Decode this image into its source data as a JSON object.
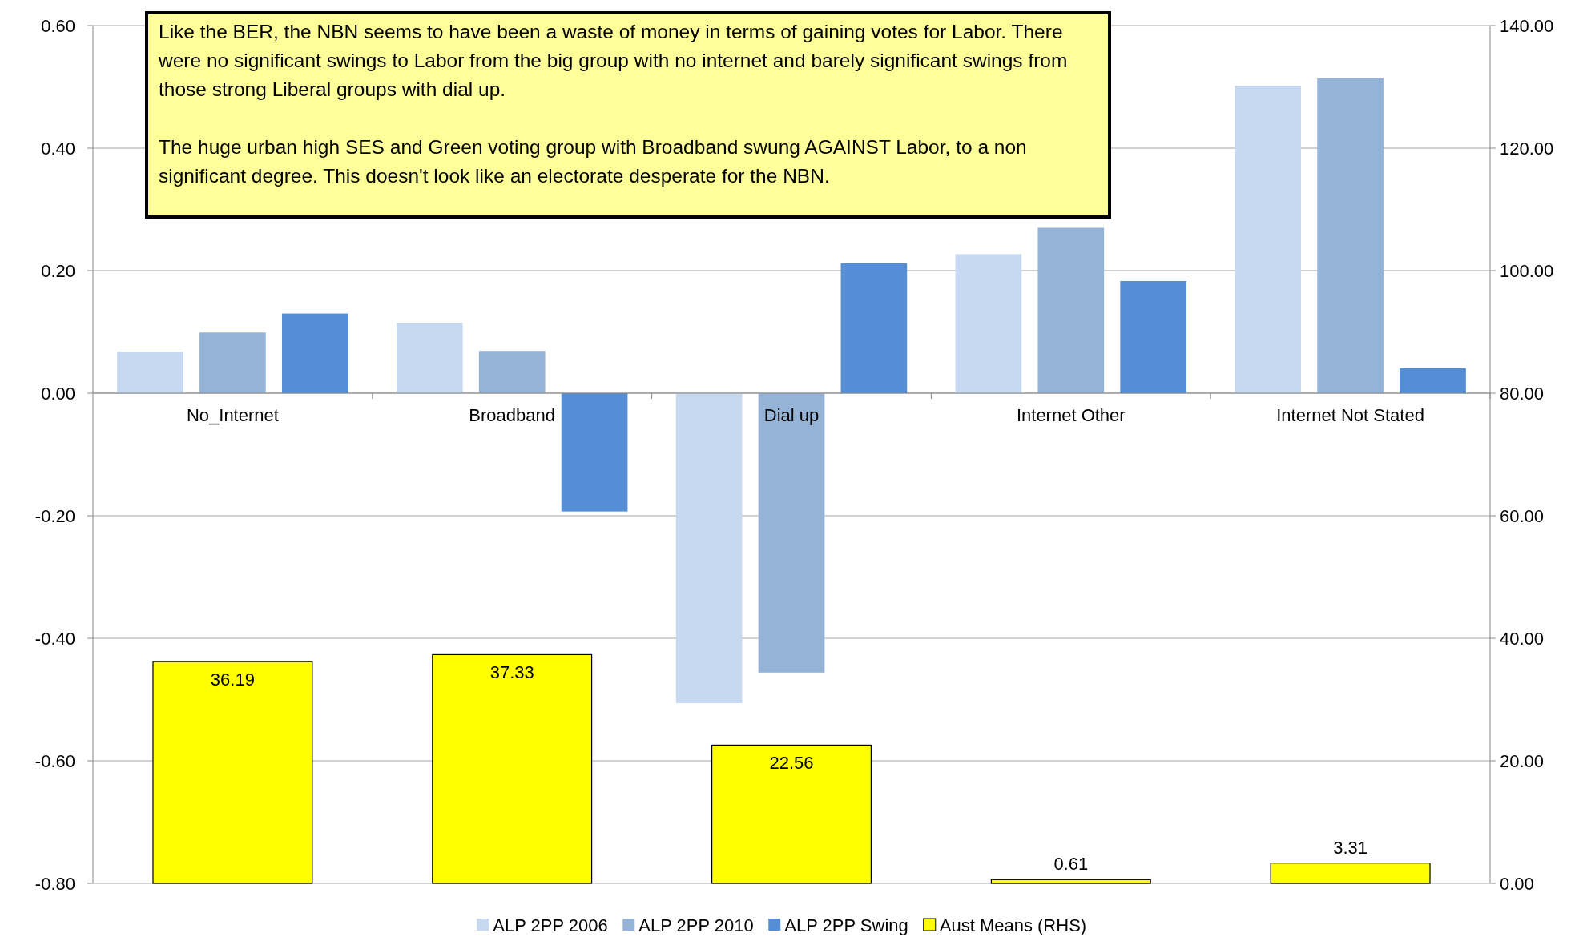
{
  "chart_data": {
    "type": "bar",
    "categories": [
      "No_Internet",
      "Broadband",
      "Dial up",
      "Internet Other",
      "Internet Not Stated"
    ],
    "series": [
      {
        "name": "ALP 2PP 2006",
        "color": "#c6d9f1",
        "values": [
          0.068,
          0.115,
          -0.506,
          0.227,
          0.502
        ]
      },
      {
        "name": "ALP 2PP 2010",
        "color": "#95b3d7",
        "values": [
          0.099,
          0.069,
          -0.456,
          0.27,
          0.514
        ]
      },
      {
        "name": "ALP 2PP Swing",
        "color": "#558ed5",
        "values": [
          0.13,
          -0.193,
          0.212,
          0.183,
          0.041
        ]
      },
      {
        "name": "Aust Means (RHS)",
        "color": "#ffff00",
        "axis": "y2",
        "values": [
          36.19,
          37.33,
          22.56,
          0.61,
          3.31
        ],
        "value_labels": [
          "36.19",
          "37.33",
          "22.56",
          "0.61",
          "3.31"
        ]
      }
    ],
    "ylim": [
      -0.8,
      0.6
    ],
    "yticks": [
      {
        "value": -0.8,
        "label": "-0.80"
      },
      {
        "value": -0.6,
        "label": "-0.60"
      },
      {
        "value": -0.4,
        "label": "-0.40"
      },
      {
        "value": -0.2,
        "label": "-0.20"
      },
      {
        "value": 0,
        "label": "0.00"
      },
      {
        "value": 0.2,
        "label": "0.20"
      },
      {
        "value": 0.4,
        "label": "0.40"
      },
      {
        "value": 0.6,
        "label": "0.60"
      }
    ],
    "y2lim": [
      0,
      140
    ],
    "y2ticks": [
      {
        "value": 0,
        "label": "0.00"
      },
      {
        "value": 20,
        "label": "20.00"
      },
      {
        "value": 40,
        "label": "40.00"
      },
      {
        "value": 60,
        "label": "60.00"
      },
      {
        "value": 80,
        "label": "80.00"
      },
      {
        "value": 100,
        "label": "100.00"
      },
      {
        "value": 120,
        "label": "120.00"
      },
      {
        "value": 140,
        "label": "140.00"
      }
    ],
    "grid": "y",
    "legend": "bottom",
    "annotations": [
      "Like the BER, the NBN seems to have been a waste of money in terms of gaining votes for Labor. There were no significant swings to Labor from the big group with no internet and barely significant swings from those strong Liberal groups with dial up.",
      "The huge urban high SES and Green voting group with Broadband swung AGAINST Labor, to a non significant degree. This doesn't look like an electorate desperate for the NBN."
    ]
  }
}
